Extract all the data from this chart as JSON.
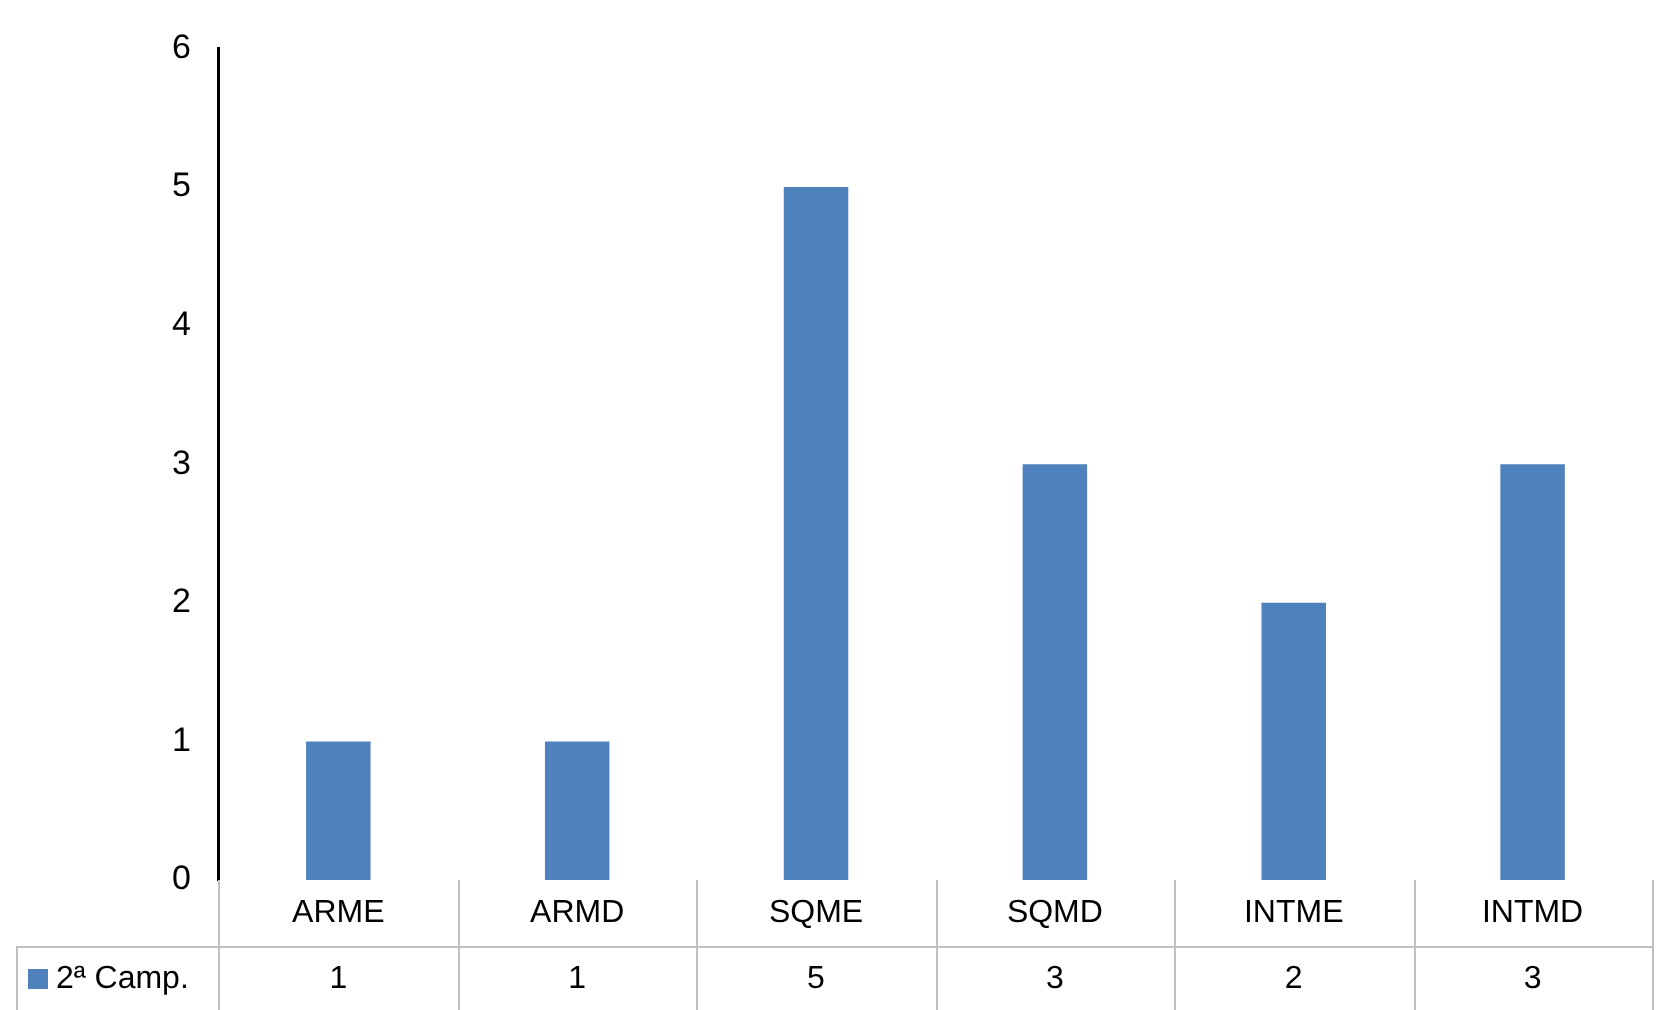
{
  "chart_data": {
    "type": "bar",
    "categories": [
      "ARME",
      "ARMD",
      "SQME",
      "SQMD",
      "INTME",
      "INTMD"
    ],
    "series": [
      {
        "name": "2ª Camp.",
        "color": "#4f81bd",
        "values": [
          1,
          1,
          5,
          3,
          2,
          3
        ]
      }
    ],
    "ylim": [
      0,
      6
    ],
    "yticks": [
      0,
      1,
      2,
      3,
      4,
      5,
      6
    ],
    "grid": false,
    "legend": "bottom",
    "data_labels": true
  }
}
